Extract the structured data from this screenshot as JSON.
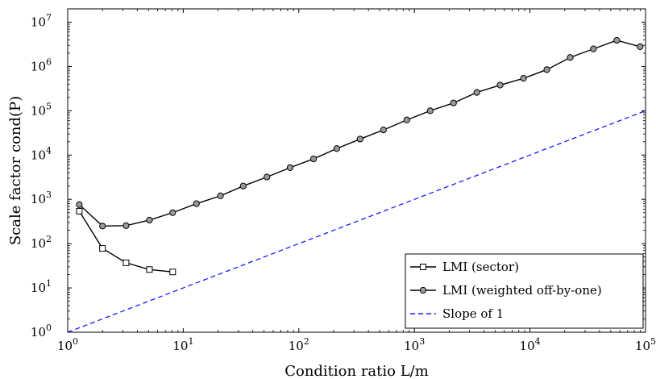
{
  "chart_data": {
    "type": "line",
    "xlabel": "Condition ratio L/m",
    "ylabel": "Scale factor cond(P)",
    "xscale": "log",
    "yscale": "log",
    "xlim": [
      1,
      100000
    ],
    "ylim": [
      1,
      20000000
    ],
    "xticks": [
      1,
      10,
      100,
      1000,
      10000,
      100000
    ],
    "yticks": [
      1,
      10,
      100,
      1000,
      10000,
      100000,
      1000000,
      10000000
    ],
    "grid": false,
    "legend_position": "bottom-right",
    "series": [
      {
        "name": "LMI (sector)",
        "marker": "square",
        "line": "solid",
        "color": "#000000",
        "x": [
          1.26,
          2.0,
          3.2,
          5.1,
          8.1
        ],
        "y": [
          540,
          78,
          37,
          26,
          23
        ]
      },
      {
        "name": "LMI (weighted off-by-one)",
        "marker": "circle",
        "line": "solid",
        "color": "#000000",
        "x": [
          1.26,
          2.0,
          3.2,
          5.1,
          8.1,
          13,
          21,
          33,
          53,
          84,
          134,
          213,
          339,
          540,
          860,
          1370,
          2180,
          3470,
          5520,
          8790,
          14000,
          22300,
          35400,
          56400,
          89800
        ],
        "y": [
          760,
          250,
          255,
          340,
          500,
          800,
          1200,
          2000,
          3200,
          5200,
          8200,
          14000,
          23000,
          37000,
          62000,
          100000,
          150000,
          260000,
          380000,
          540000,
          850000,
          1600000,
          2500000,
          3900000,
          2800000
        ]
      },
      {
        "name": "Slope of 1",
        "marker": "none",
        "line": "dashed",
        "color": "#1a1aff",
        "x": [
          1,
          100000
        ],
        "y": [
          1,
          100000
        ]
      }
    ]
  }
}
